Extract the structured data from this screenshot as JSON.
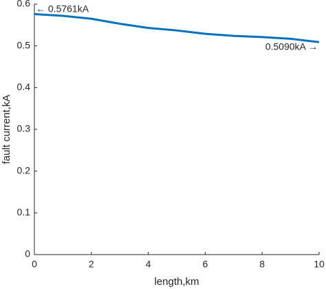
{
  "chart_data": {
    "type": "line",
    "xlabel": "length,km",
    "ylabel": "fault current,kA",
    "x": [
      0,
      1,
      2,
      3,
      4,
      5,
      6,
      7,
      8,
      9,
      10
    ],
    "series": [
      {
        "color": "#0072bd",
        "values": [
          0.5761,
          0.572,
          0.565,
          0.553,
          0.543,
          0.537,
          0.529,
          0.524,
          0.521,
          0.517,
          0.509
        ]
      }
    ],
    "xlim": [
      0,
      10
    ],
    "xticks": [
      0,
      2,
      4,
      6,
      8,
      10
    ],
    "ylim": [
      0,
      0.6
    ],
    "yticks": [
      0,
      0.1,
      0.2,
      0.3,
      0.4,
      0.5,
      0.6
    ],
    "annotations": [
      "← 0.5761kA",
      "0.5090kA →"
    ]
  }
}
